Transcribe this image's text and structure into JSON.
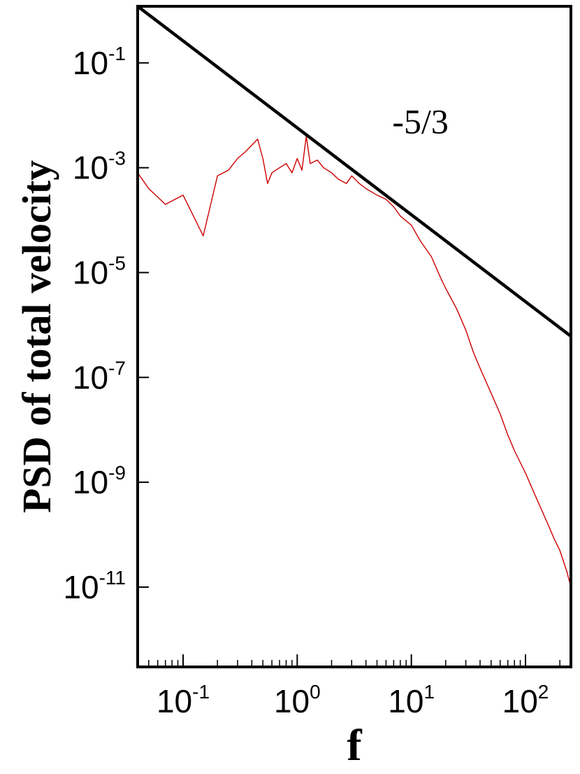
{
  "chart_data": {
    "type": "line",
    "xlabel": "f",
    "ylabel": "PSD of total velocity",
    "xscale": "log",
    "yscale": "log",
    "xlim": [
      0.04,
      250
    ],
    "ylim": [
      3e-13,
      1.2
    ],
    "grid": false,
    "x_ticks": [
      {
        "base": "10",
        "exp": "-1",
        "value": 0.1
      },
      {
        "base": "10",
        "exp": "0",
        "value": 1
      },
      {
        "base": "10",
        "exp": "1",
        "value": 10
      },
      {
        "base": "10",
        "exp": "2",
        "value": 100
      }
    ],
    "y_ticks": [
      {
        "base": "10",
        "exp": "-1",
        "value": 0.1
      },
      {
        "base": "10",
        "exp": "-3",
        "value": 0.001
      },
      {
        "base": "10",
        "exp": "-5",
        "value": 1e-05
      },
      {
        "base": "10",
        "exp": "-7",
        "value": 1e-07
      },
      {
        "base": "10",
        "exp": "-9",
        "value": 1e-09
      },
      {
        "base": "10",
        "exp": "-11",
        "value": 1e-11
      }
    ],
    "annotations": [
      {
        "text": "-5/3",
        "x": 12,
        "y": 0.0045
      }
    ],
    "series": [
      {
        "color": "#cc0000",
        "style": "thin-line",
        "x": [
          0.04,
          0.05,
          0.07,
          0.1,
          0.15,
          0.2,
          0.25,
          0.3,
          0.35,
          0.45,
          0.5,
          0.55,
          0.6,
          0.7,
          0.8,
          0.9,
          1.0,
          1.1,
          1.2,
          1.3,
          1.5,
          1.7,
          2.0,
          2.3,
          2.7,
          3.0,
          3.5,
          4.0,
          5.0,
          6.0,
          7.0,
          8.0,
          10,
          12,
          15,
          18,
          20,
          25,
          30,
          35,
          40,
          50,
          60,
          70,
          80,
          100,
          120,
          150,
          180,
          200,
          230,
          250
        ],
        "y": [
          0.0008,
          0.0004,
          0.0002,
          0.0003,
          5e-05,
          0.0007,
          0.0009,
          0.0015,
          0.002,
          0.0035,
          0.0015,
          0.0005,
          0.0008,
          0.001,
          0.0012,
          0.0008,
          0.0015,
          0.0009,
          0.004,
          0.0012,
          0.0014,
          0.001,
          0.0008,
          0.0006,
          0.0005,
          0.0007,
          0.0005,
          0.0004,
          0.0003,
          0.00025,
          0.00018,
          0.00012,
          8e-05,
          4e-05,
          2e-05,
          8e-06,
          5e-06,
          2e-06,
          8e-07,
          3e-07,
          1.5e-07,
          5e-08,
          2e-08,
          8e-09,
          4e-09,
          1.5e-09,
          6e-10,
          2e-10,
          8e-11,
          5e-11,
          2e-11,
          1e-11
        ]
      },
      {
        "color": "#000000",
        "style": "thick-line",
        "x": [
          0.04,
          250
        ],
        "y": [
          1.2,
          6.1e-07
        ]
      }
    ]
  }
}
